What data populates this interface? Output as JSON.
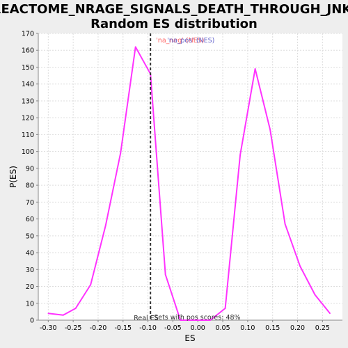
{
  "chart_data": {
    "type": "line",
    "title": "REACTOME_NRAGE_SIGNALS_DEATH_THROUGH_JNK:",
    "subtitle": "Random ES distribution",
    "xlabel": "ES",
    "ylabel": "P(ES)",
    "xlim": [
      -0.32,
      0.29
    ],
    "ylim": [
      0,
      170
    ],
    "xticks": [
      -0.3,
      -0.25,
      -0.2,
      -0.15,
      -0.1,
      -0.05,
      0.0,
      0.05,
      0.1,
      0.15,
      0.2,
      0.25
    ],
    "xtick_labels": [
      "-0.30",
      "-0.25",
      "-0.20",
      "-0.15",
      "-0.10",
      "-0.05",
      "0.00",
      "0.05",
      "0.10",
      "0.15",
      "0.20",
      "0.25"
    ],
    "yticks": [
      0,
      10,
      20,
      30,
      40,
      50,
      60,
      70,
      80,
      90,
      100,
      110,
      120,
      130,
      140,
      150,
      160,
      170
    ],
    "grid": true,
    "series": [
      {
        "color": "#ff33ff",
        "x": [
          -0.3,
          -0.27,
          -0.245,
          -0.215,
          -0.185,
          -0.155,
          -0.125,
          -0.095,
          -0.065,
          -0.035,
          -0.005,
          0.025,
          0.055,
          0.085,
          0.115,
          0.145,
          0.175,
          0.205,
          0.235,
          0.265
        ],
        "y": [
          4,
          3,
          7,
          21,
          56,
          99,
          162,
          146,
          27,
          0,
          0,
          0,
          7,
          98,
          149,
          113,
          57,
          32,
          15,
          4
        ]
      }
    ],
    "real_es": {
      "x": -0.095,
      "color": "#333333",
      "label": "Real ES"
    },
    "annotations": {
      "top_label_1": {
        "text": "'na_neg' (NES)",
        "color": "#ff6666"
      },
      "top_label_2": {
        "text": "'na_pos' (NES)",
        "color": "#6666cc"
      },
      "bottom_label": {
        "text": "Sets with pos scores: 48%",
        "color": "#333333"
      }
    }
  }
}
